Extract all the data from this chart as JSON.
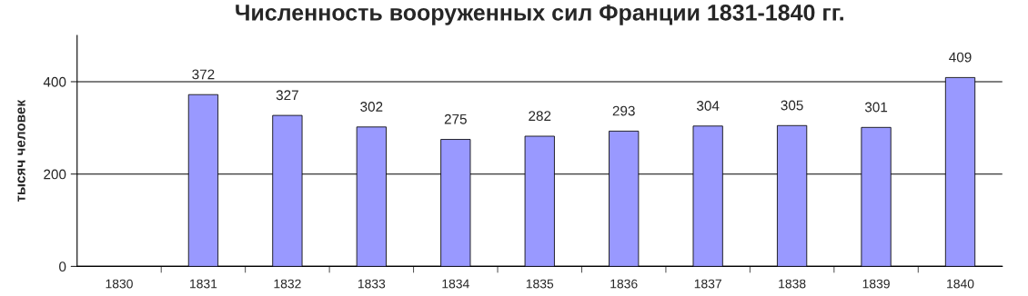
{
  "chart_data": {
    "type": "bar",
    "title": "Численность вооруженных сил Франции 1831-1840 гг.",
    "ylabel": "тысяч человек",
    "categories": [
      "1830",
      "1831",
      "1832",
      "1833",
      "1834",
      "1835",
      "1836",
      "1837",
      "1838",
      "1839",
      "1840"
    ],
    "values": [
      null,
      372,
      327,
      302,
      275,
      282,
      293,
      304,
      305,
      301,
      409
    ],
    "color": "#9999ff",
    "ylim": [
      0,
      500
    ],
    "yticks": [
      0,
      200,
      400
    ],
    "grid": "y",
    "data_labels": true,
    "legend": false
  }
}
